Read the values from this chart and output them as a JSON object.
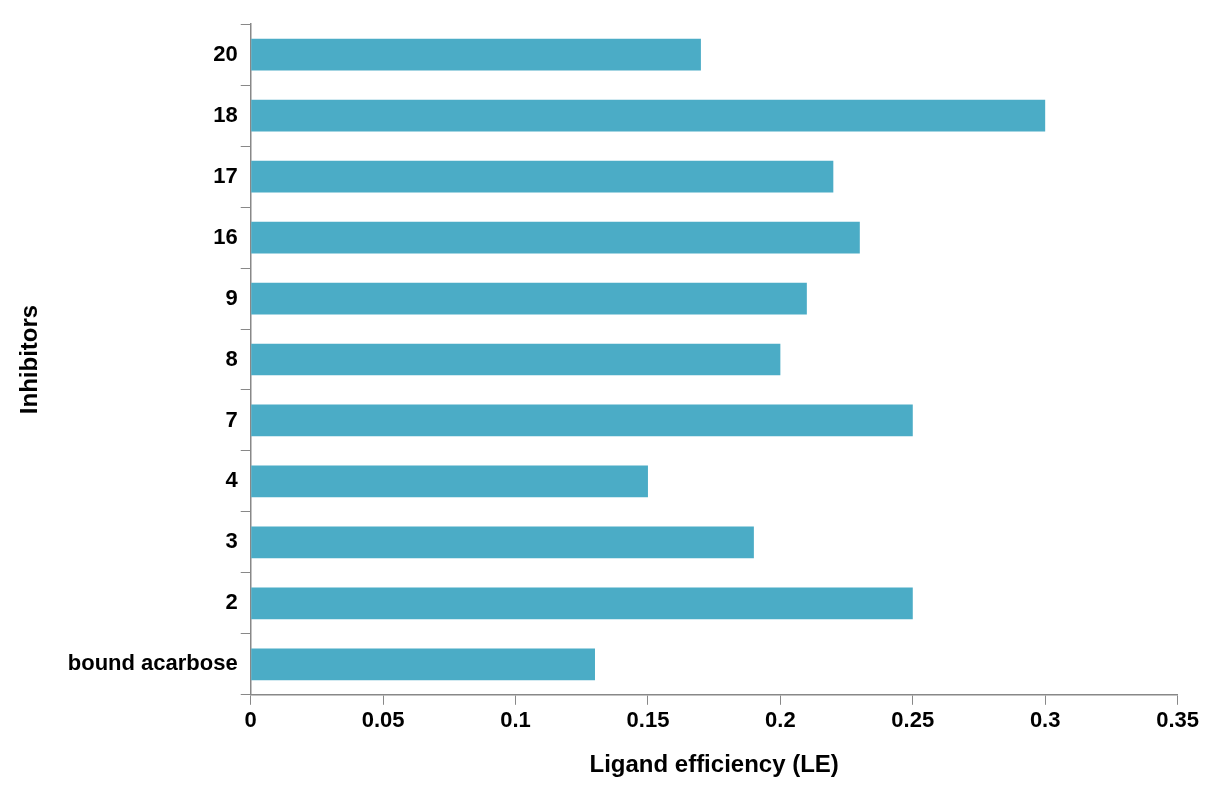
{
  "chart_data": {
    "type": "bar",
    "orientation": "horizontal",
    "xlabel": "Ligand efficiency (LE)",
    "ylabel": "Inhibitors",
    "categories": [
      "20",
      "18",
      "17",
      "16",
      "9",
      "8",
      "7",
      "4",
      "3",
      "2",
      "bound acarbose"
    ],
    "values": [
      0.17,
      0.3,
      0.22,
      0.23,
      0.21,
      0.2,
      0.25,
      0.15,
      0.19,
      0.25,
      0.13
    ],
    "color": "#4bacc6",
    "xlim": [
      0,
      0.35
    ],
    "xticks": [
      0,
      0.05,
      0.1,
      0.15,
      0.2,
      0.25,
      0.3,
      0.35
    ],
    "grid": false,
    "legend": false
  }
}
